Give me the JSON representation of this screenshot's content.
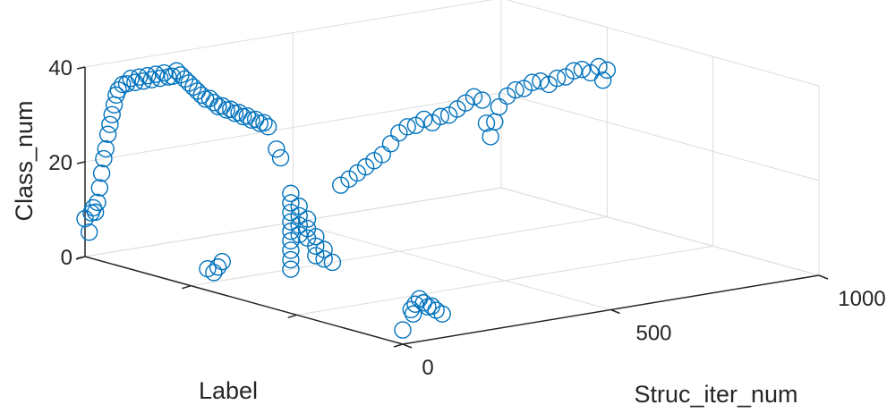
{
  "chart_data": {
    "type": "scatter",
    "projection": "3d",
    "title": "",
    "xlabel": "Struc_iter_num",
    "ylabel": "Label",
    "zlabel": "Class_num",
    "xlim": [
      0,
      1000
    ],
    "ylim": [
      1,
      4
    ],
    "zlim": [
      0,
      40
    ],
    "xticks": [
      "0",
      "500",
      "1000"
    ],
    "yticks": [
      "1",
      "2",
      "3",
      "4"
    ],
    "zticks": [
      "0",
      "20",
      "40"
    ],
    "grid": true,
    "marker": "open-circle",
    "color": "#0072BD",
    "points": [
      [
        0,
        4,
        8
      ],
      [
        10,
        4,
        5
      ],
      [
        15,
        4,
        9
      ],
      [
        20,
        4,
        10
      ],
      [
        25,
        4,
        9
      ],
      [
        30,
        4,
        11
      ],
      [
        35,
        4,
        14
      ],
      [
        40,
        4,
        17
      ],
      [
        45,
        4,
        20
      ],
      [
        50,
        4,
        22
      ],
      [
        55,
        4,
        25
      ],
      [
        60,
        4,
        27
      ],
      [
        65,
        4,
        29
      ],
      [
        70,
        4,
        31
      ],
      [
        75,
        4,
        33
      ],
      [
        80,
        4,
        34
      ],
      [
        90,
        4,
        35
      ],
      [
        100,
        4,
        35
      ],
      [
        110,
        4,
        36
      ],
      [
        120,
        4,
        35
      ],
      [
        130,
        4,
        36
      ],
      [
        140,
        4,
        35
      ],
      [
        150,
        4,
        36
      ],
      [
        160,
        4,
        35
      ],
      [
        170,
        4,
        36
      ],
      [
        180,
        4,
        35
      ],
      [
        190,
        4,
        36
      ],
      [
        200,
        4,
        35
      ],
      [
        210,
        4,
        35
      ],
      [
        220,
        4,
        36
      ],
      [
        230,
        4,
        35
      ],
      [
        240,
        4,
        34
      ],
      [
        250,
        4,
        33
      ],
      [
        260,
        4,
        32
      ],
      [
        270,
        4,
        31
      ],
      [
        280,
        4,
        30
      ],
      [
        290,
        4,
        29
      ],
      [
        300,
        4,
        29
      ],
      [
        310,
        4,
        28
      ],
      [
        320,
        4,
        27
      ],
      [
        330,
        4,
        27
      ],
      [
        340,
        4,
        26
      ],
      [
        350,
        4,
        26
      ],
      [
        360,
        4,
        25
      ],
      [
        370,
        4,
        25
      ],
      [
        380,
        4,
        24
      ],
      [
        390,
        4,
        24
      ],
      [
        400,
        4,
        23
      ],
      [
        410,
        4,
        23
      ],
      [
        420,
        4,
        22
      ],
      [
        430,
        4,
        22
      ],
      [
        440,
        4,
        21
      ],
      [
        460,
        4,
        16
      ],
      [
        470,
        4,
        14
      ],
      [
        40,
        3,
        3
      ],
      [
        55,
        3,
        2
      ],
      [
        65,
        3,
        3
      ],
      [
        75,
        3,
        4
      ],
      [
        240,
        3,
        16
      ],
      [
        240,
        3,
        14
      ],
      [
        240,
        3,
        12
      ],
      [
        240,
        3,
        10
      ],
      [
        240,
        3,
        8
      ],
      [
        240,
        3,
        6
      ],
      [
        240,
        3,
        4
      ],
      [
        240,
        3,
        2
      ],
      [
        240,
        3,
        0
      ],
      [
        260,
        3,
        13
      ],
      [
        260,
        3,
        11
      ],
      [
        260,
        3,
        9
      ],
      [
        260,
        3,
        7
      ],
      [
        280,
        3,
        10
      ],
      [
        280,
        3,
        8
      ],
      [
        280,
        3,
        6
      ],
      [
        300,
        3,
        6
      ],
      [
        300,
        3,
        4
      ],
      [
        300,
        3,
        2
      ],
      [
        320,
        3,
        3
      ],
      [
        320,
        3,
        1
      ],
      [
        340,
        3,
        0
      ],
      [
        360,
        3,
        16
      ],
      [
        380,
        3,
        17
      ],
      [
        400,
        3,
        18
      ],
      [
        420,
        3,
        19
      ],
      [
        440,
        3,
        20
      ],
      [
        460,
        3,
        21
      ],
      [
        480,
        3,
        23
      ],
      [
        500,
        3,
        25
      ],
      [
        520,
        3,
        26
      ],
      [
        540,
        3,
        26
      ],
      [
        560,
        3,
        27
      ],
      [
        580,
        3,
        26
      ],
      [
        600,
        3,
        27
      ],
      [
        620,
        3,
        27
      ],
      [
        640,
        3,
        28
      ],
      [
        660,
        3,
        29
      ],
      [
        680,
        3,
        30
      ],
      [
        700,
        3,
        29
      ],
      [
        710,
        3,
        24
      ],
      [
        720,
        3,
        21
      ],
      [
        730,
        3,
        24
      ],
      [
        740,
        3,
        27
      ],
      [
        760,
        3,
        29
      ],
      [
        780,
        3,
        30
      ],
      [
        800,
        3,
        30
      ],
      [
        820,
        3,
        31
      ],
      [
        840,
        3,
        31
      ],
      [
        860,
        3,
        30
      ],
      [
        880,
        3,
        31
      ],
      [
        900,
        3,
        31
      ],
      [
        920,
        3,
        32
      ],
      [
        940,
        3,
        32
      ],
      [
        960,
        3,
        31
      ],
      [
        980,
        3,
        32
      ],
      [
        990,
        3,
        29
      ],
      [
        1000,
        3,
        31
      ],
      [
        0,
        1,
        3
      ],
      [
        20,
        1,
        7
      ],
      [
        25,
        1,
        6
      ],
      [
        30,
        1,
        8
      ],
      [
        40,
        1,
        9
      ],
      [
        50,
        1,
        8
      ],
      [
        60,
        1,
        7
      ],
      [
        70,
        1,
        7
      ],
      [
        80,
        1,
        6
      ],
      [
        95,
        1,
        5
      ]
    ]
  }
}
